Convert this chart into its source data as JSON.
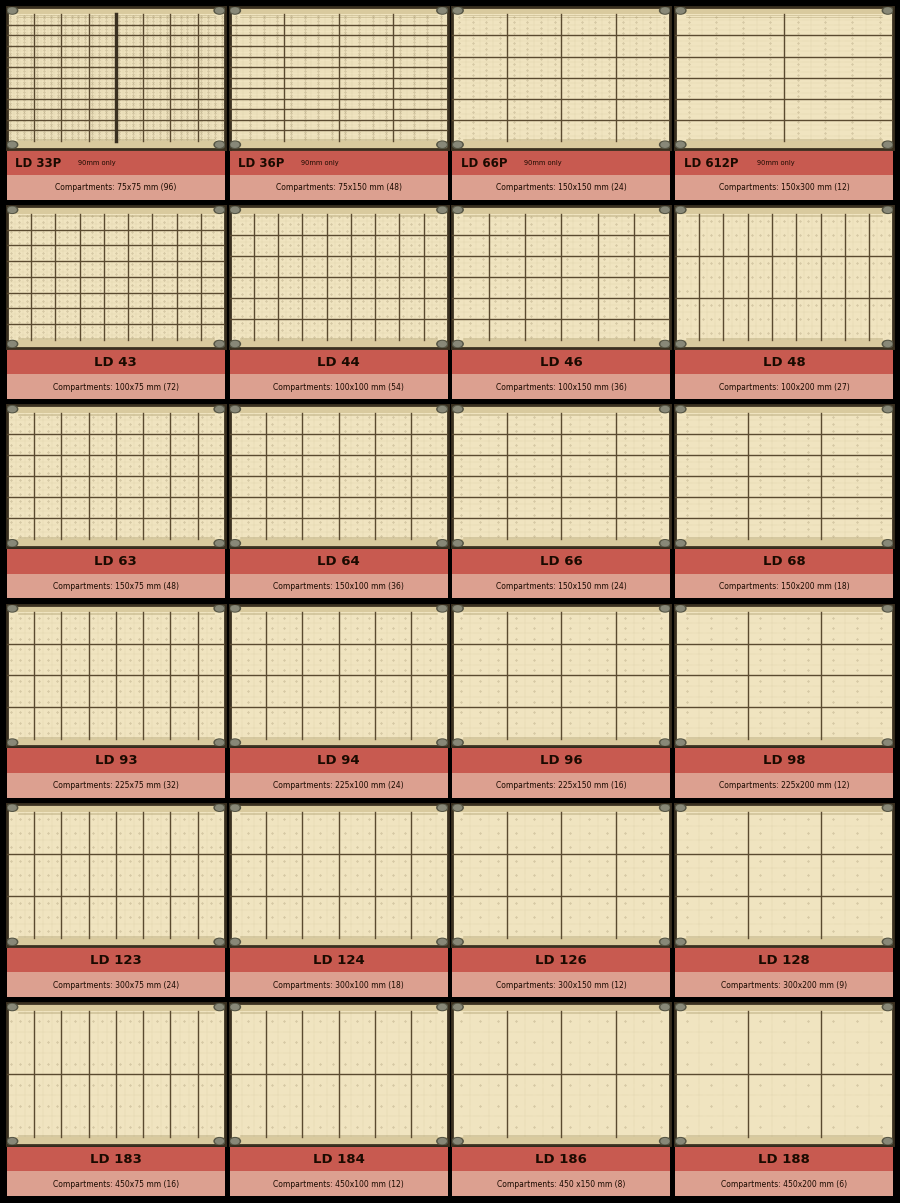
{
  "bg_color": "#000000",
  "drawer_fill": "#f0e4c0",
  "drawer_border": "#3a3020",
  "main_grid_color": "#5a4a30",
  "sub_grid_color": "#c8b890",
  "rail_color": "#d0c090",
  "bolt_color": "#888878",
  "label_top_color": "#c85a50",
  "label_bot_color": "#dca090",
  "text_color": "#1a0a00",
  "rows": [
    [
      {
        "name": "LD 33P",
        "suffix": "90mm only",
        "comp": "75x75 mm (96)",
        "mc": 8,
        "mr": 12,
        "sc": 4,
        "sr": 4,
        "divider": true
      },
      {
        "name": "LD 36P",
        "suffix": "90mm only",
        "comp": "75x150 mm (48)",
        "mc": 4,
        "mr": 12,
        "sc": 4,
        "sr": 4,
        "divider": false
      },
      {
        "name": "LD 66P",
        "suffix": "90mm only",
        "comp": "150x150 mm (24)",
        "mc": 4,
        "mr": 6,
        "sc": 4,
        "sr": 4,
        "divider": false
      },
      {
        "name": "LD 612P",
        "suffix": "90mm only",
        "comp": "150x300 mm (12)",
        "mc": 2,
        "mr": 6,
        "sc": 4,
        "sr": 4,
        "divider": false
      }
    ],
    [
      {
        "name": "LD 43",
        "suffix": "",
        "comp": "100x75 mm (72)",
        "mc": 9,
        "mr": 8,
        "sc": 3,
        "sr": 3,
        "divider": false
      },
      {
        "name": "LD 44",
        "suffix": "",
        "comp": "100x100 mm (54)",
        "mc": 9,
        "mr": 6,
        "sc": 3,
        "sr": 3,
        "divider": false
      },
      {
        "name": "LD 46",
        "suffix": "",
        "comp": "100x150 mm (36)",
        "mc": 6,
        "mr": 6,
        "sc": 3,
        "sr": 3,
        "divider": false
      },
      {
        "name": "LD 48",
        "suffix": "",
        "comp": "100x200 mm (27)",
        "mc": 9,
        "mr": 3,
        "sc": 3,
        "sr": 3,
        "divider": false
      }
    ],
    [
      {
        "name": "LD 63",
        "suffix": "",
        "comp": "150x75 mm (48)",
        "mc": 8,
        "mr": 6,
        "sc": 3,
        "sr": 3,
        "divider": false
      },
      {
        "name": "LD 64",
        "suffix": "",
        "comp": "150x100 mm (36)",
        "mc": 6,
        "mr": 6,
        "sc": 3,
        "sr": 3,
        "divider": false
      },
      {
        "name": "LD 66",
        "suffix": "",
        "comp": "150x150 mm (24)",
        "mc": 4,
        "mr": 6,
        "sc": 3,
        "sr": 3,
        "divider": false
      },
      {
        "name": "LD 68",
        "suffix": "",
        "comp": "150x200 mm (18)",
        "mc": 3,
        "mr": 6,
        "sc": 3,
        "sr": 3,
        "divider": false
      }
    ],
    [
      {
        "name": "LD 93",
        "suffix": "",
        "comp": "225x75 mm (32)",
        "mc": 8,
        "mr": 4,
        "sc": 3,
        "sr": 3,
        "divider": false
      },
      {
        "name": "LD 94",
        "suffix": "",
        "comp": "225x100 mm (24)",
        "mc": 6,
        "mr": 4,
        "sc": 3,
        "sr": 3,
        "divider": false
      },
      {
        "name": "LD 96",
        "suffix": "",
        "comp": "225x150 mm (16)",
        "mc": 4,
        "mr": 4,
        "sc": 3,
        "sr": 3,
        "divider": false
      },
      {
        "name": "LD 98",
        "suffix": "",
        "comp": "225x200 mm (12)",
        "mc": 3,
        "mr": 4,
        "sc": 3,
        "sr": 3,
        "divider": false
      }
    ],
    [
      {
        "name": "LD 123",
        "suffix": "",
        "comp": "300x75 mm (24)",
        "mc": 8,
        "mr": 3,
        "sc": 3,
        "sr": 3,
        "divider": false
      },
      {
        "name": "LD 124",
        "suffix": "",
        "comp": "300x100 mm (18)",
        "mc": 6,
        "mr": 3,
        "sc": 3,
        "sr": 3,
        "divider": false
      },
      {
        "name": "LD 126",
        "suffix": "",
        "comp": "300x150 mm (12)",
        "mc": 4,
        "mr": 3,
        "sc": 3,
        "sr": 3,
        "divider": false
      },
      {
        "name": "LD 128",
        "suffix": "",
        "comp": "300x200 mm (9)",
        "mc": 3,
        "mr": 3,
        "sc": 3,
        "sr": 3,
        "divider": false
      }
    ],
    [
      {
        "name": "LD 183",
        "suffix": "",
        "comp": "450x75 mm (16)",
        "mc": 8,
        "mr": 2,
        "sc": 3,
        "sr": 3,
        "divider": false
      },
      {
        "name": "LD 184",
        "suffix": "",
        "comp": "450x100 mm (12)",
        "mc": 6,
        "mr": 2,
        "sc": 3,
        "sr": 3,
        "divider": false
      },
      {
        "name": "LD 186",
        "suffix": "",
        "comp": "450 x150 mm (8)",
        "mc": 4,
        "mr": 2,
        "sc": 3,
        "sr": 3,
        "divider": false
      },
      {
        "name": "LD 188",
        "suffix": "",
        "comp": "450x200 mm (6)",
        "mc": 3,
        "mr": 2,
        "sc": 3,
        "sr": 3,
        "divider": false
      }
    ]
  ]
}
